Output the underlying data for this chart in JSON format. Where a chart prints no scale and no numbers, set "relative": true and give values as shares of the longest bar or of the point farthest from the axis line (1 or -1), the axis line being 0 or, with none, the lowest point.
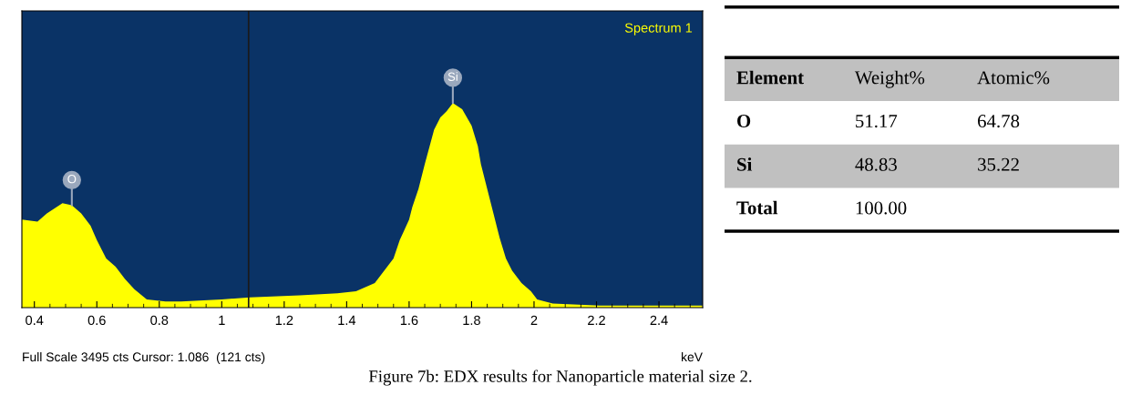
{
  "chart_data": [
    {
      "type": "area",
      "relative": true,
      "title": "Spectrum 1",
      "xlabel": "keV",
      "color": "#ffff00",
      "x": [
        0.36,
        0.41,
        0.44,
        0.47,
        0.49,
        0.52,
        0.55,
        0.58,
        0.6,
        0.63,
        0.66,
        0.69,
        0.72,
        0.76,
        0.82,
        0.87,
        1.0,
        1.09,
        1.25,
        1.37,
        1.43,
        1.49,
        1.52,
        1.55,
        1.57,
        1.6,
        1.61,
        1.63,
        1.65,
        1.68,
        1.7,
        1.72,
        1.74,
        1.77,
        1.8,
        1.82,
        1.83,
        1.85,
        1.87,
        1.89,
        1.91,
        1.93,
        1.96,
        1.99,
        2.01,
        2.06,
        2.21,
        2.54
      ],
      "values": [
        0.43,
        0.42,
        0.46,
        0.49,
        0.51,
        0.5,
        0.46,
        0.4,
        0.33,
        0.24,
        0.2,
        0.14,
        0.09,
        0.04,
        0.03,
        0.03,
        0.04,
        0.05,
        0.06,
        0.07,
        0.08,
        0.12,
        0.18,
        0.24,
        0.33,
        0.43,
        0.49,
        0.58,
        0.7,
        0.87,
        0.93,
        0.96,
        1,
        0.97,
        0.89,
        0.79,
        0.7,
        0.58,
        0.46,
        0.34,
        0.24,
        0.18,
        0.12,
        0.08,
        0.04,
        0.02,
        0.01,
        0.01
      ],
      "xlim": [
        0.36,
        2.54
      ],
      "xticks": [
        0.4,
        {
          "value": 0.45,
          "label": null
        },
        {
          "value": 0.5,
          "label": null
        },
        {
          "value": 0.55,
          "label": null
        },
        0.6,
        {
          "value": 0.65,
          "label": null
        },
        {
          "value": 0.7,
          "label": null
        },
        {
          "value": 0.75,
          "label": null
        },
        0.8,
        {
          "value": 0.85,
          "label": null
        },
        {
          "value": 0.9,
          "label": null
        },
        {
          "value": 0.95,
          "label": null
        },
        1,
        {
          "value": 1.05,
          "label": null
        },
        {
          "value": 1.1,
          "label": null
        },
        {
          "value": 1.15,
          "label": null
        },
        1.2,
        {
          "value": 1.25,
          "label": null
        },
        {
          "value": 1.3,
          "label": null
        },
        {
          "value": 1.35,
          "label": null
        },
        1.4,
        {
          "value": 1.45,
          "label": null
        },
        {
          "value": 1.5,
          "label": null
        },
        {
          "value": 1.55,
          "label": null
        },
        1.6,
        {
          "value": 1.65,
          "label": null
        },
        {
          "value": 1.7,
          "label": null
        },
        {
          "value": 1.75,
          "label": null
        },
        1.8,
        {
          "value": 1.85,
          "label": null
        },
        {
          "value": 1.9,
          "label": null
        },
        {
          "value": 1.95,
          "label": null
        },
        2,
        {
          "value": 2.05,
          "label": null
        },
        {
          "value": 2.1,
          "label": null
        },
        {
          "value": 2.15,
          "label": null
        },
        2.2,
        {
          "value": 2.25,
          "label": null
        },
        {
          "value": 2.3,
          "label": null
        },
        {
          "value": 2.35,
          "label": null
        },
        2.4,
        {
          "value": 2.45,
          "label": null
        },
        {
          "value": 2.5,
          "label": null
        }
      ],
      "ref_lines": [
        {
          "axis": "x",
          "value": 1.086,
          "color": "#1a1a1a"
        }
      ],
      "grid": false,
      "annotations": [
        {
          "text": "O",
          "x": 0.52,
          "y": 0.5
        },
        {
          "text": "Si",
          "x": 1.74,
          "y": 1
        },
        "Full Scale 3495 cts Cursor: 1.086  (121 cts)",
        "Figure 7b: EDX results for Nanoparticle material size 2."
      ]
    },
    {
      "type": "other",
      "annotations": [
        "Element",
        "Weight%",
        "Atomic%",
        "O",
        "51.17",
        "64.78",
        "Si",
        "48.83",
        "35.22",
        "Total",
        "100.00"
      ]
    }
  ]
}
